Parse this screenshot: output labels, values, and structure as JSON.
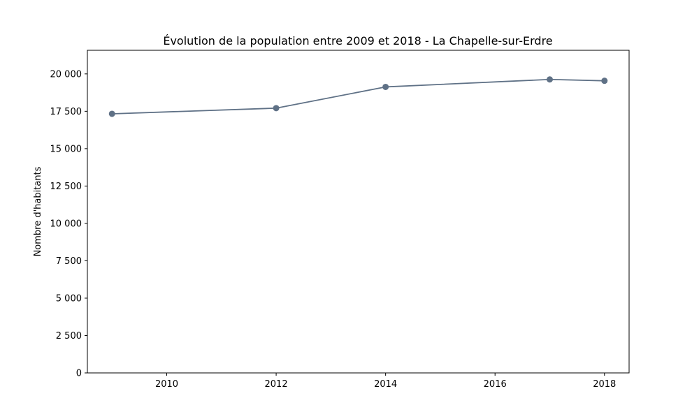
{
  "chart_data": {
    "type": "line",
    "title": "Évolution de la population entre 2009 et 2018 - La Chapelle-sur-Erdre",
    "xlabel": "",
    "ylabel": "Nombre d'habitants",
    "x": [
      2009,
      2012,
      2014,
      2017,
      2018
    ],
    "series": [
      {
        "values": [
          17330,
          17710,
          19130,
          19630,
          19540
        ]
      }
    ],
    "x_ticks": [
      2010,
      2012,
      2014,
      2016,
      2018
    ],
    "x_tick_labels": [
      "2010",
      "2012",
      "2014",
      "2016",
      "2018"
    ],
    "y_ticks": [
      0,
      2500,
      5000,
      7500,
      10000,
      12500,
      15000,
      17500,
      20000
    ],
    "y_tick_labels": [
      "0",
      "2 500",
      "5 000",
      "7 500",
      "10 000",
      "12 500",
      "15 000",
      "17 500",
      "20 000"
    ],
    "xlim": [
      2008.55,
      2018.45
    ],
    "ylim": [
      0,
      21580
    ],
    "grid": false,
    "line_color": "#5f7186"
  }
}
